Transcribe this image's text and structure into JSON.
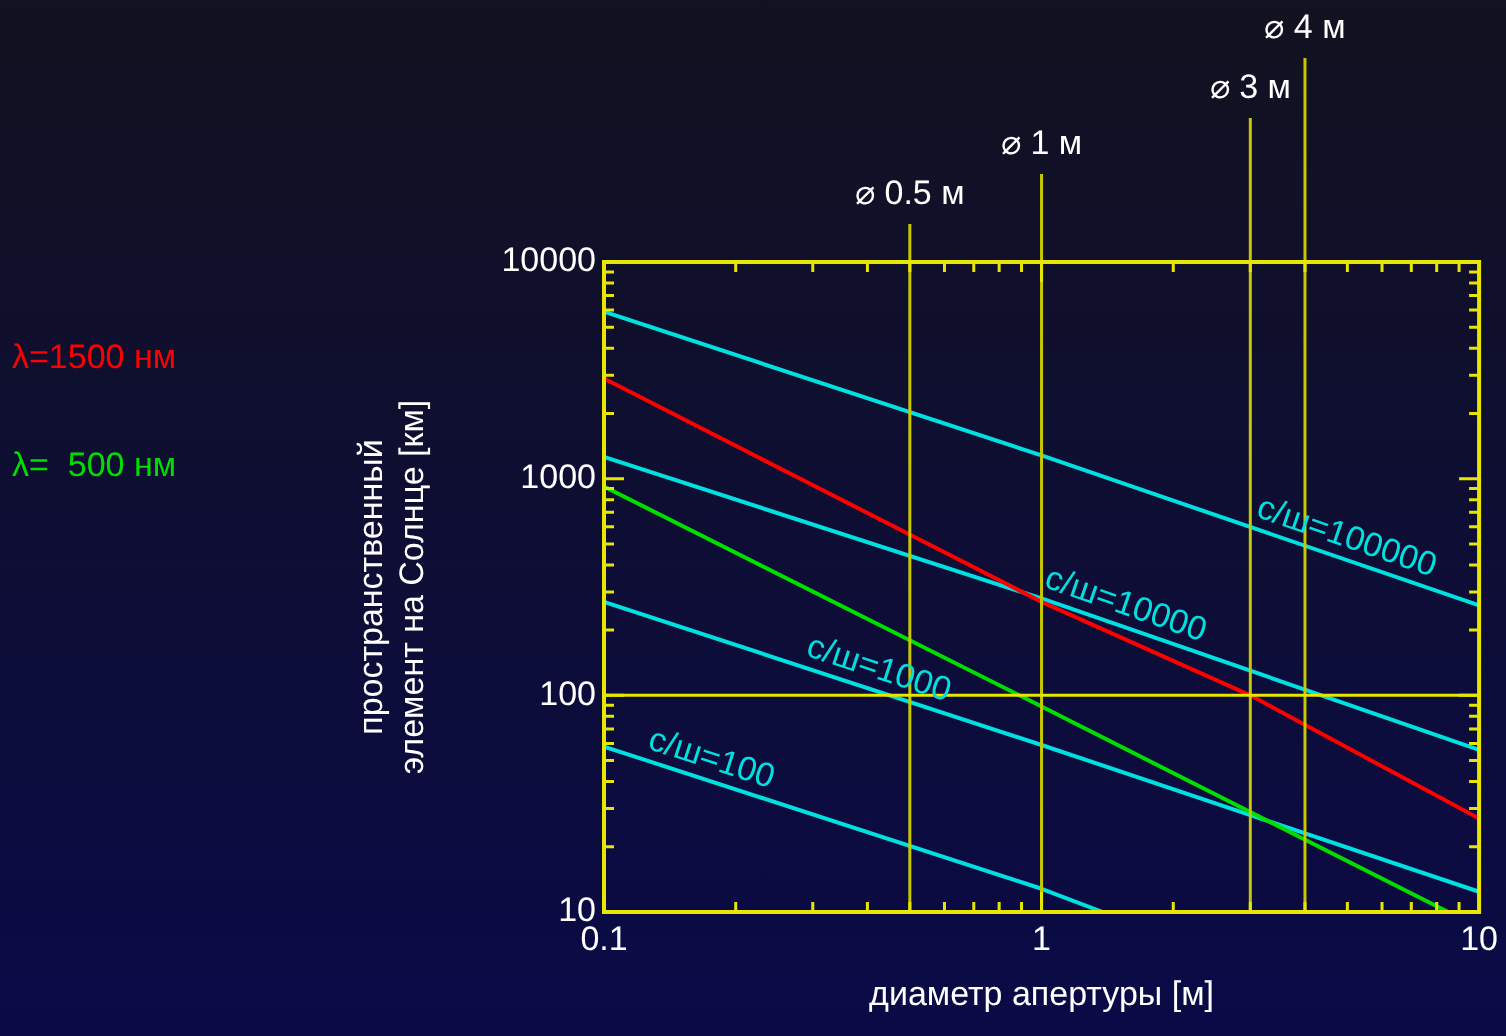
{
  "chart_data": {
    "type": "line",
    "xlabel": "диаметр апертуры [м]",
    "ylabel": "пространственный элемент на Солнце [км]",
    "log": "xy",
    "grid": false,
    "legend": false,
    "marker": "none",
    "line_style": "solid",
    "xlim": [
      0.1,
      10
    ],
    "ylim": [
      10,
      10000
    ],
    "xticks": [
      0.1,
      {
        "value": 0.2,
        "label": null
      },
      {
        "value": 0.3,
        "label": null
      },
      {
        "value": 0.4,
        "label": null
      },
      {
        "value": 0.5,
        "label": null
      },
      {
        "value": 0.6,
        "label": null
      },
      {
        "value": 0.7,
        "label": null
      },
      {
        "value": 0.8,
        "label": null
      },
      {
        "value": 0.9,
        "label": null
      },
      1,
      {
        "value": 2,
        "label": null
      },
      {
        "value": 3,
        "label": null
      },
      {
        "value": 4,
        "label": null
      },
      {
        "value": 5,
        "label": null
      },
      {
        "value": 6,
        "label": null
      },
      {
        "value": 7,
        "label": null
      },
      {
        "value": 8,
        "label": null
      },
      {
        "value": 9,
        "label": null
      },
      10
    ],
    "yticks": [
      10,
      {
        "value": 20,
        "label": null
      },
      {
        "value": 30,
        "label": null
      },
      {
        "value": 40,
        "label": null
      },
      {
        "value": 50,
        "label": null
      },
      {
        "value": 60,
        "label": null
      },
      {
        "value": 70,
        "label": null
      },
      {
        "value": 80,
        "label": null
      },
      {
        "value": 90,
        "label": null
      },
      100,
      {
        "value": 200,
        "label": null
      },
      {
        "value": 300,
        "label": null
      },
      {
        "value": 400,
        "label": null
      },
      {
        "value": 500,
        "label": null
      },
      {
        "value": 600,
        "label": null
      },
      {
        "value": 700,
        "label": null
      },
      {
        "value": 800,
        "label": null
      },
      {
        "value": 900,
        "label": null
      },
      1000,
      {
        "value": 2000,
        "label": null
      },
      {
        "value": 3000,
        "label": null
      },
      {
        "value": 4000,
        "label": null
      },
      {
        "value": 5000,
        "label": null
      },
      {
        "value": 6000,
        "label": null
      },
      {
        "value": 7000,
        "label": null
      },
      {
        "value": 8000,
        "label": null
      },
      {
        "value": 9000,
        "label": null
      },
      10000
    ],
    "series": [
      {
        "name": "λ=1500 нм",
        "color": "#ff0000",
        "x": [
          0.1,
          1,
          3,
          10
        ],
        "values": [
          2900,
          270,
          100,
          27
        ]
      },
      {
        "name": "λ=  500 нм",
        "color": "#00dd00",
        "x": [
          0.1,
          0.89,
          8.5
        ],
        "values": [
          920,
          100,
          10
        ]
      },
      {
        "name": "с/ш=100000",
        "color": "#00e0e0",
        "x": [
          0.1,
          1,
          10
        ],
        "values": [
          5900,
          1280,
          260
        ]
      },
      {
        "name": "с/ш=10000",
        "color": "#00e0e0",
        "x": [
          0.1,
          1,
          10
        ],
        "values": [
          1260,
          280,
          56
        ]
      },
      {
        "name": "с/ш=1000",
        "color": "#00e0e0",
        "x": [
          0.1,
          1,
          10
        ],
        "values": [
          270,
          59,
          12.4
        ]
      },
      {
        "name": "с/ш=100",
        "color": "#00e0e0",
        "x": [
          0.1,
          1,
          1.38
        ],
        "values": [
          58,
          12.8,
          10
        ]
      }
    ],
    "ref_lines": [
      {
        "axis": "x",
        "value": 0.5,
        "label": "⌀ 0.5 м",
        "color": "#c8c800"
      },
      {
        "axis": "x",
        "value": 1,
        "label": "⌀ 1 м",
        "color": "#c8c800"
      },
      {
        "axis": "x",
        "value": 3,
        "label": "⌀ 3 м",
        "color": "#c8c800"
      },
      {
        "axis": "x",
        "value": 4,
        "label": "⌀ 4 м",
        "color": "#c8c800"
      },
      {
        "axis": "y",
        "value": 100,
        "color": "#e6e600"
      }
    ]
  }
}
